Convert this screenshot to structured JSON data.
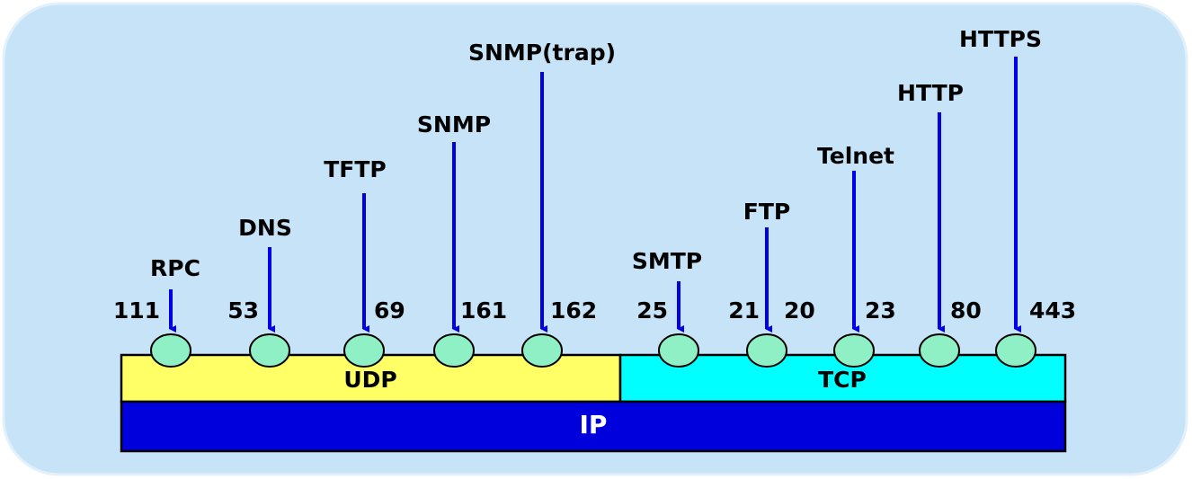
{
  "services": [
    {
      "name": "RPC",
      "ports": [
        "111"
      ]
    },
    {
      "name": "DNS",
      "ports": [
        "53"
      ]
    },
    {
      "name": "TFTP",
      "ports": [
        "69"
      ]
    },
    {
      "name": "SNMP",
      "ports": [
        "161"
      ]
    },
    {
      "name": "SNMP(trap)",
      "ports": [
        "162"
      ]
    },
    {
      "name": "SMTP",
      "ports": [
        "25"
      ]
    },
    {
      "name": "FTP",
      "ports": [
        "21",
        "20"
      ]
    },
    {
      "name": "Telnet",
      "ports": [
        "23"
      ]
    },
    {
      "name": "HTTP",
      "ports": [
        "80"
      ]
    },
    {
      "name": "HTTPS",
      "ports": [
        "443"
      ]
    }
  ],
  "layers": {
    "udp": "UDP",
    "tcp": "TCP",
    "ip": "IP"
  }
}
